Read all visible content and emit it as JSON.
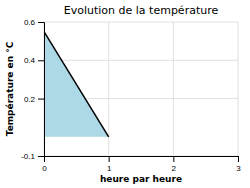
{
  "chart_data": {
    "type": "area",
    "title": "Evolution de la température",
    "xlabel": "heure par heure",
    "ylabel": "Température en °C",
    "xlim": [
      0,
      3
    ],
    "ylim": [
      -0.1,
      0.6
    ],
    "xticks": [
      0,
      1,
      2,
      3
    ],
    "yticks": [
      -0.1,
      0.2,
      0.4,
      0.6
    ],
    "grid": true,
    "series": [
      {
        "type": "area",
        "x": [
          0,
          0,
          1
        ],
        "values": [
          0.0,
          0.55,
          0.0
        ],
        "color": "#add8e6"
      },
      {
        "type": "line",
        "x": [
          0,
          1
        ],
        "values": [
          0.55,
          0.0
        ],
        "color": "#000000"
      }
    ]
  }
}
